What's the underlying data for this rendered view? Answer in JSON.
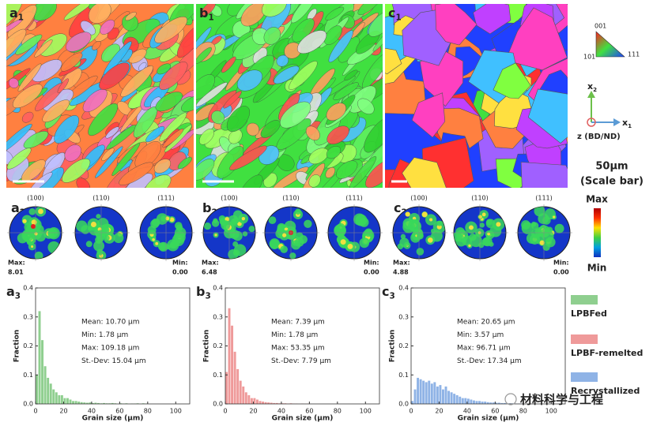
{
  "maps": [
    {
      "letter": "a",
      "sub": "1"
    },
    {
      "letter": "b",
      "sub": "1"
    },
    {
      "letter": "c",
      "sub": "1"
    }
  ],
  "ipf": {
    "corners": [
      "001",
      "101",
      "111"
    ]
  },
  "axes_icon": {
    "up": {
      "letter": "x",
      "sub": "2"
    },
    "right": {
      "letter": "x",
      "sub": "1"
    },
    "z": "z (BD/ND)"
  },
  "scale_bar": {
    "size": "50μm",
    "label": "(Scale bar)"
  },
  "pole_figures": [
    {
      "label": {
        "letter": "a",
        "sub": "2"
      },
      "planes": [
        "(100)",
        "(110)",
        "(111)"
      ],
      "max_label": "Max:",
      "max": "8.01",
      "min_label": "Min:",
      "min": "0.00"
    },
    {
      "label": {
        "letter": "b",
        "sub": "2"
      },
      "planes": [
        "(100)",
        "(110)",
        "(111)"
      ],
      "max_label": "Max:",
      "max": "6.48",
      "min_label": "Min:",
      "min": "0.00"
    },
    {
      "label": {
        "letter": "c",
        "sub": "2"
      },
      "planes": [
        "(100)",
        "(110)",
        "(111)"
      ],
      "max_label": "Max:",
      "max": "4.88",
      "min_label": "Min:",
      "min": "0.00"
    }
  ],
  "colorbar": {
    "max": "Max",
    "min": "Min"
  },
  "chart_data": [
    {
      "type": "histogram",
      "panel": {
        "letter": "a",
        "sub": "3"
      },
      "xlabel": "Grain size (μm)",
      "ylabel": "Fraction",
      "annotations": [
        "Mean:  10.70 μm",
        "Min: 1.78 μm",
        "Max: 109.18 μm",
        "St.-Dev: 15.04 μm"
      ],
      "bins": [
        0,
        2,
        4,
        6,
        8,
        10,
        12,
        14,
        16,
        18,
        20,
        22,
        24,
        26,
        28,
        30,
        32,
        34,
        36,
        38,
        40,
        42,
        44,
        46,
        48,
        50,
        52,
        54,
        56,
        58,
        60,
        62,
        64,
        66,
        68,
        70,
        72,
        74,
        76,
        78,
        80
      ],
      "series": [
        {
          "name": "LPBFed",
          "color": "#8fcf8f",
          "values": [
            0.1,
            0.32,
            0.22,
            0.13,
            0.09,
            0.07,
            0.05,
            0.04,
            0.03,
            0.03,
            0.02,
            0.02,
            0.015,
            0.01,
            0.01,
            0.008,
            0.006,
            0.005,
            0.004,
            0.005,
            0.003,
            0.004,
            0.003,
            0.002,
            0.003,
            0.002,
            0.002,
            0.003,
            0.002,
            0.0,
            0.002,
            0.001,
            0.002,
            0.0,
            0.001,
            0.001,
            0.002,
            0.0,
            0.002,
            0.001
          ]
        }
      ],
      "xlim": [
        0,
        110
      ],
      "xticks": [
        0,
        20,
        40,
        60,
        80,
        100
      ],
      "ylim": [
        0,
        0.4
      ],
      "yticks": [
        {
          "value": 0,
          "label": "0.0"
        },
        0.1,
        0.2,
        0.3,
        0.4
      ]
    },
    {
      "type": "histogram",
      "panel": {
        "letter": "b",
        "sub": "3"
      },
      "xlabel": "Grain size (μm)",
      "ylabel": "Fraction",
      "annotations": [
        "Mean:  7.39 μm",
        "Min: 1.78 μm",
        "Max: 53.35 μm",
        "St.-Dev: 7.79 μm"
      ],
      "bins": [
        0,
        2,
        4,
        6,
        8,
        10,
        12,
        14,
        16,
        18,
        20,
        22,
        24,
        26,
        28,
        30,
        32,
        34,
        36,
        38,
        40,
        42,
        44,
        46,
        48,
        50,
        52,
        54,
        56,
        58,
        60
      ],
      "series": [
        {
          "name": "LPBF-remelted",
          "color": "#ef9a9a",
          "values": [
            0.11,
            0.33,
            0.27,
            0.18,
            0.12,
            0.08,
            0.06,
            0.04,
            0.03,
            0.02,
            0.02,
            0.015,
            0.01,
            0.008,
            0.006,
            0.005,
            0.004,
            0.003,
            0.003,
            0.002,
            0.002,
            0.002,
            0.001,
            0.002,
            0.001,
            0.001,
            0.0,
            0.001,
            0.0,
            0.001
          ]
        }
      ],
      "xlim": [
        0,
        110
      ],
      "xticks": [
        0,
        20,
        40,
        60,
        80,
        100
      ],
      "ylim": [
        0,
        0.4
      ],
      "yticks": [
        {
          "value": 0,
          "label": "0.0"
        },
        0.1,
        0.2,
        0.3,
        0.4
      ]
    },
    {
      "type": "histogram",
      "panel": {
        "letter": "c",
        "sub": "3"
      },
      "xlabel": "Grain size (μm)",
      "ylabel": "Fraction",
      "annotations": [
        "Mean:  20.65 μm",
        "Min: 3.57 μm",
        "Max: 96.71 μm",
        "St.-Dev: 17.34 μm"
      ],
      "bins": [
        0,
        2,
        4,
        6,
        8,
        10,
        12,
        14,
        16,
        18,
        20,
        22,
        24,
        26,
        28,
        30,
        32,
        34,
        36,
        38,
        40,
        42,
        44,
        46,
        48,
        50,
        52,
        54,
        56,
        58,
        60,
        62,
        64,
        66,
        68,
        70,
        72,
        74,
        76,
        78,
        80
      ],
      "series": [
        {
          "name": "Recrystallized",
          "color": "#8fb3e6",
          "values": [
            0.01,
            0.05,
            0.09,
            0.085,
            0.08,
            0.075,
            0.08,
            0.07,
            0.075,
            0.06,
            0.065,
            0.05,
            0.06,
            0.045,
            0.04,
            0.035,
            0.03,
            0.025,
            0.02,
            0.02,
            0.018,
            0.015,
            0.012,
            0.01,
            0.01,
            0.008,
            0.008,
            0.006,
            0.005,
            0.005,
            0.004,
            0.004,
            0.003,
            0.003,
            0.002,
            0.002,
            0.002,
            0.001,
            0.001,
            0.001
          ]
        }
      ],
      "xlim": [
        0,
        110
      ],
      "xticks": [
        0,
        20,
        40,
        60,
        80,
        100
      ],
      "ylim": [
        0,
        0.4
      ],
      "yticks": [
        {
          "value": 0,
          "label": "0.0"
        },
        0.1,
        0.2,
        0.3,
        0.4
      ]
    }
  ],
  "watermark": "材料科学与工程"
}
